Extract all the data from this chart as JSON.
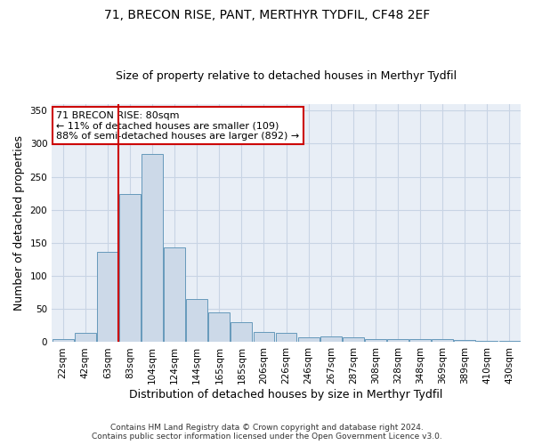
{
  "title1": "71, BRECON RISE, PANT, MERTHYR TYDFIL, CF48 2EF",
  "title2": "Size of property relative to detached houses in Merthyr Tydfil",
  "xlabel": "Distribution of detached houses by size in Merthyr Tydfil",
  "ylabel": "Number of detached properties",
  "footer1": "Contains HM Land Registry data © Crown copyright and database right 2024.",
  "footer2": "Contains public sector information licensed under the Open Government Licence v3.0.",
  "annotation_line1": "71 BRECON RISE: 80sqm",
  "annotation_line2": "← 11% of detached houses are smaller (109)",
  "annotation_line3": "88% of semi-detached houses are larger (892) →",
  "bar_color": "#ccd9e8",
  "bar_edge_color": "#6699bb",
  "vline_color": "#cc0000",
  "annotation_box_edgecolor": "#cc0000",
  "categories": [
    "22sqm",
    "42sqm",
    "63sqm",
    "83sqm",
    "104sqm",
    "124sqm",
    "144sqm",
    "165sqm",
    "185sqm",
    "206sqm",
    "226sqm",
    "246sqm",
    "267sqm",
    "287sqm",
    "308sqm",
    "328sqm",
    "348sqm",
    "369sqm",
    "389sqm",
    "410sqm",
    "430sqm"
  ],
  "values": [
    5,
    14,
    137,
    224,
    285,
    143,
    65,
    45,
    30,
    16,
    14,
    8,
    9,
    8,
    4,
    5,
    5,
    4,
    3,
    2,
    2
  ],
  "ylim": [
    0,
    360
  ],
  "yticks": [
    0,
    50,
    100,
    150,
    200,
    250,
    300,
    350
  ],
  "vline_x_index": 3.0,
  "grid_color": "#c8d4e4",
  "bg_color": "#e8eef6",
  "title1_fontsize": 10,
  "title2_fontsize": 9,
  "tick_fontsize": 7.5,
  "ylabel_fontsize": 9,
  "xlabel_fontsize": 9,
  "footer_fontsize": 6.5,
  "annotation_fontsize": 8
}
